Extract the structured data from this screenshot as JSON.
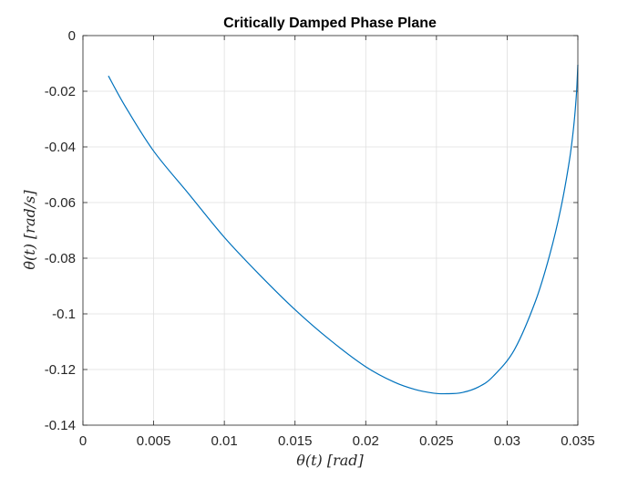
{
  "chart_data": {
    "type": "line",
    "title": "Critically Damped Phase Plane",
    "xlabel": "θ(t)  [rad]",
    "ylabel": "θ̇(t)  [rad/s]",
    "xlim": [
      0,
      0.035
    ],
    "ylim": [
      -0.14,
      0
    ],
    "xticks": [
      0,
      0.005,
      0.01,
      0.015,
      0.02,
      0.025,
      0.03,
      0.035
    ],
    "xtick_labels": [
      "0",
      "0.005",
      "0.01",
      "0.015",
      "0.02",
      "0.025",
      "0.03",
      "0.035"
    ],
    "yticks": [
      0,
      -0.02,
      -0.04,
      -0.06,
      -0.08,
      -0.1,
      -0.12,
      -0.14
    ],
    "ytick_labels": [
      "0",
      "-0.02",
      "-0.04",
      "-0.06",
      "-0.08",
      "-0.1",
      "-0.12",
      "-0.14"
    ],
    "grid": true,
    "line_color": "#0072BD",
    "series": [
      {
        "x": [
          0.0018,
          0.003,
          0.005,
          0.0075,
          0.01,
          0.0125,
          0.015,
          0.0175,
          0.02,
          0.022,
          0.0235,
          0.0248,
          0.0257,
          0.0268,
          0.028,
          0.029,
          0.0305,
          0.032,
          0.033,
          0.0338,
          0.0344,
          0.0347,
          0.0349,
          0.035
        ],
        "y": [
          -0.0145,
          -0.0255,
          -0.0415,
          -0.057,
          -0.0725,
          -0.086,
          -0.0985,
          -0.1095,
          -0.119,
          -0.1245,
          -0.1272,
          -0.1285,
          -0.1287,
          -0.1283,
          -0.1262,
          -0.1225,
          -0.113,
          -0.0955,
          -0.079,
          -0.062,
          -0.045,
          -0.033,
          -0.021,
          -0.0105
        ]
      }
    ]
  }
}
